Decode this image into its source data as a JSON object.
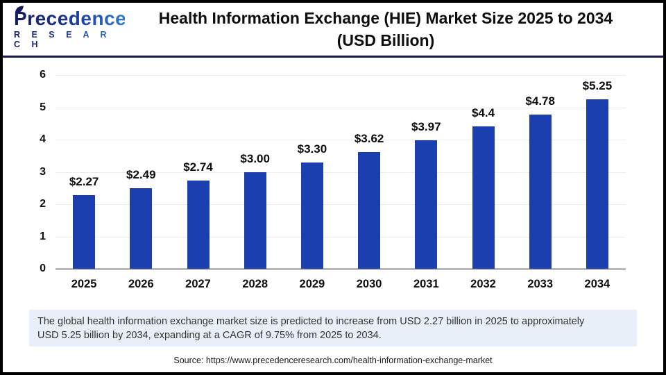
{
  "header": {
    "logo_word": "Precedence",
    "logo_sub": "R E S E A R C H",
    "title_line1": "Health Information Exchange (HIE) Market Size 2025 to 2034",
    "title_line2": "(USD Billion)"
  },
  "chart_data": {
    "type": "bar",
    "title": "Health Information Exchange (HIE) Market Size 2025 to 2034 (USD Billion)",
    "categories": [
      "2025",
      "2026",
      "2027",
      "2028",
      "2029",
      "2030",
      "2031",
      "2032",
      "2033",
      "2034"
    ],
    "values": [
      2.27,
      2.49,
      2.74,
      3.0,
      3.3,
      3.62,
      3.97,
      4.4,
      4.78,
      5.25
    ],
    "labels": [
      "$2.27",
      "$2.49",
      "$2.74",
      "$3.00",
      "$3.30",
      "$3.62",
      "$3.97",
      "$4.4",
      "$4.78",
      "$5.25"
    ],
    "xlabel": "",
    "ylabel": "",
    "ylim": [
      0,
      6
    ],
    "yticks": [
      0,
      1,
      2,
      3,
      4,
      5,
      6
    ],
    "grid": true,
    "legend": false,
    "bar_color": "#1b3fae"
  },
  "summary": {
    "text_line1": "The global health information exchange market size is predicted to increase from USD 2.27 billion in 2025 to approximately",
    "text_line2": "USD 5.25 billion by 2034, expanding at a CAGR of 9.75% from 2025 to 2034."
  },
  "footer": {
    "source": "Source: https://www.precedenceresearch.com/health-information-exchange-market"
  },
  "colors": {
    "bar": "#1b3fae",
    "divider": "#15154a",
    "summary_bg": "#e9eff8",
    "gridline": "#ececec",
    "axis_line": "#b8b8b8",
    "logo_gradient_start": "#141a5e",
    "logo_gradient_end": "#2f7ad1"
  }
}
